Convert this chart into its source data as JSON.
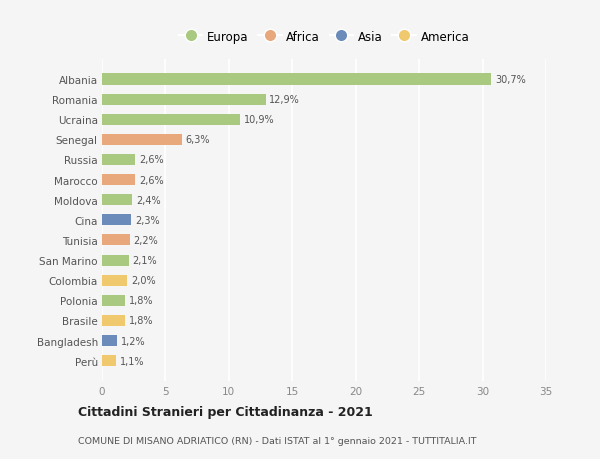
{
  "countries": [
    "Albania",
    "Romania",
    "Ucraina",
    "Senegal",
    "Russia",
    "Marocco",
    "Moldova",
    "Cina",
    "Tunisia",
    "San Marino",
    "Colombia",
    "Polonia",
    "Brasile",
    "Bangladesh",
    "Perù"
  ],
  "values": [
    30.7,
    12.9,
    10.9,
    6.3,
    2.6,
    2.6,
    2.4,
    2.3,
    2.2,
    2.1,
    2.0,
    1.8,
    1.8,
    1.2,
    1.1
  ],
  "labels": [
    "30,7%",
    "12,9%",
    "10,9%",
    "6,3%",
    "2,6%",
    "2,6%",
    "2,4%",
    "2,3%",
    "2,2%",
    "2,1%",
    "2,0%",
    "1,8%",
    "1,8%",
    "1,2%",
    "1,1%"
  ],
  "continents": [
    "Europa",
    "Europa",
    "Europa",
    "Africa",
    "Europa",
    "Africa",
    "Europa",
    "Asia",
    "Africa",
    "Europa",
    "America",
    "Europa",
    "America",
    "Asia",
    "America"
  ],
  "colors": {
    "Europa": "#a8c97f",
    "Africa": "#e8a87c",
    "Asia": "#6b8cba",
    "America": "#f0c96e"
  },
  "legend_items": [
    "Europa",
    "Africa",
    "Asia",
    "America"
  ],
  "xlim": [
    0,
    35
  ],
  "xticks": [
    0,
    5,
    10,
    15,
    20,
    25,
    30,
    35
  ],
  "title": "Cittadini Stranieri per Cittadinanza - 2021",
  "subtitle": "COMUNE DI MISANO ADRIATICO (RN) - Dati ISTAT al 1° gennaio 2021 - TUTTITALIA.IT",
  "background_color": "#f5f5f5",
  "grid_color": "#ffffff",
  "bar_height": 0.55
}
